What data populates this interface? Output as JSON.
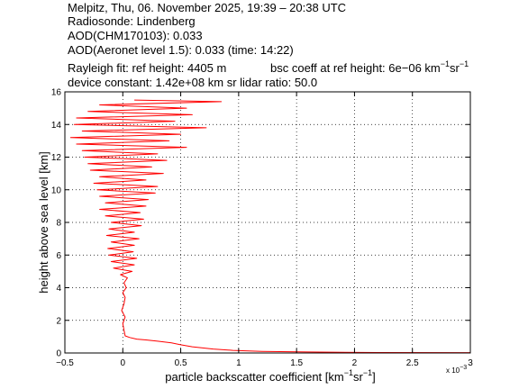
{
  "header": {
    "line1": "Melpitz, Thu, 06. November 2025, 19:39 – 20:38 UTC",
    "line2": "Radiosonde: Lindenberg",
    "line3": "AOD(CHM170103): 0.033",
    "line4": "AOD(Aeronet level 1.5): 0.033   (time: 14:22)",
    "line5a": "Rayleigh fit:     ref height: 4405 m",
    "line5b_prefix": "bsc coeff at ref height: 6e−06 km",
    "line5b_exp1": "−1",
    "line5b_mid": "sr",
    "line5b_exp2": "−1",
    "line6": "device constant: 1.42e+08 km sr     lidar ratio: 50.0"
  },
  "chart_data": {
    "type": "line",
    "xlabel_prefix": "particle backscatter coefficient [km",
    "xlabel_exp1": "−1",
    "xlabel_mid": "sr",
    "xlabel_exp2": "−1",
    "xlabel_suffix": "]",
    "ylabel": "height above sea level [km]",
    "x_multiplier_base": "x 10",
    "x_multiplier_exp": "−3",
    "xlim": [
      -0.5,
      3.0
    ],
    "ylim": [
      0,
      16
    ],
    "xticks": [
      -0.5,
      0,
      0.5,
      1,
      1.5,
      2,
      2.5,
      3
    ],
    "xtick_labels": [
      "−0.5",
      "0",
      "0.5",
      "1",
      "1.5",
      "2",
      "2.5",
      "3"
    ],
    "yticks": [
      0,
      2,
      4,
      6,
      8,
      10,
      12,
      14,
      16
    ],
    "ytick_labels": [
      "0",
      "2",
      "4",
      "6",
      "8",
      "10",
      "12",
      "14",
      "16"
    ],
    "grid": true,
    "series": [
      {
        "color": "#ff0000",
        "points": [
          [
            3.0,
            0.02
          ],
          [
            2.2,
            0.03
          ],
          [
            1.6,
            0.06
          ],
          [
            1.2,
            0.1
          ],
          [
            0.95,
            0.16
          ],
          [
            0.78,
            0.24
          ],
          [
            0.6,
            0.38
          ],
          [
            0.5,
            0.5
          ],
          [
            0.42,
            0.62
          ],
          [
            0.3,
            0.72
          ],
          [
            0.2,
            0.8
          ],
          [
            0.12,
            0.85
          ],
          [
            0.06,
            0.95
          ],
          [
            0.02,
            1.05
          ],
          [
            0.01,
            1.4
          ],
          [
            0.0,
            1.8
          ],
          [
            0.02,
            2.2
          ],
          [
            -0.01,
            2.6
          ],
          [
            0.01,
            3.0
          ],
          [
            0.02,
            3.4
          ],
          [
            0.0,
            3.7
          ],
          [
            0.03,
            4.0
          ],
          [
            0.01,
            4.3
          ],
          [
            0.04,
            4.6
          ],
          [
            -0.02,
            4.8
          ],
          [
            0.08,
            5.0
          ],
          [
            -0.08,
            5.2
          ],
          [
            0.1,
            5.4
          ],
          [
            -0.1,
            5.6
          ],
          [
            0.12,
            5.8
          ],
          [
            -0.12,
            6.0
          ],
          [
            0.09,
            6.2
          ],
          [
            -0.13,
            6.4
          ],
          [
            0.1,
            6.6
          ],
          [
            -0.1,
            6.8
          ],
          [
            0.14,
            7.0
          ],
          [
            -0.14,
            7.2
          ],
          [
            0.1,
            7.4
          ],
          [
            -0.12,
            7.6
          ],
          [
            0.16,
            7.8
          ],
          [
            -0.1,
            8.0
          ],
          [
            0.18,
            8.2
          ],
          [
            -0.15,
            8.4
          ],
          [
            0.15,
            8.6
          ],
          [
            -0.2,
            8.8
          ],
          [
            0.2,
            9.0
          ],
          [
            -0.15,
            9.2
          ],
          [
            0.22,
            9.4
          ],
          [
            -0.2,
            9.6
          ],
          [
            0.28,
            9.8
          ],
          [
            -0.22,
            10.0
          ],
          [
            0.3,
            10.2
          ],
          [
            -0.25,
            10.4
          ],
          [
            0.2,
            10.6
          ],
          [
            -0.2,
            10.8
          ],
          [
            0.35,
            11.0
          ],
          [
            -0.28,
            11.2
          ],
          [
            0.25,
            11.4
          ],
          [
            -0.3,
            11.6
          ],
          [
            0.38,
            11.8
          ],
          [
            -0.33,
            12.0
          ],
          [
            0.3,
            12.2
          ],
          [
            -0.35,
            12.4
          ],
          [
            0.55,
            12.6
          ],
          [
            -0.4,
            12.8
          ],
          [
            0.4,
            13.0
          ],
          [
            -0.45,
            13.2
          ],
          [
            0.5,
            13.4
          ],
          [
            -0.35,
            13.6
          ],
          [
            0.72,
            13.8
          ],
          [
            -0.42,
            14.0
          ],
          [
            0.45,
            14.2
          ],
          [
            -0.4,
            14.4
          ],
          [
            0.6,
            14.6
          ],
          [
            -0.3,
            14.8
          ],
          [
            0.55,
            15.0
          ],
          [
            -0.2,
            15.2
          ],
          [
            0.85,
            15.4
          ],
          [
            0.1,
            15.5
          ]
        ]
      }
    ]
  }
}
